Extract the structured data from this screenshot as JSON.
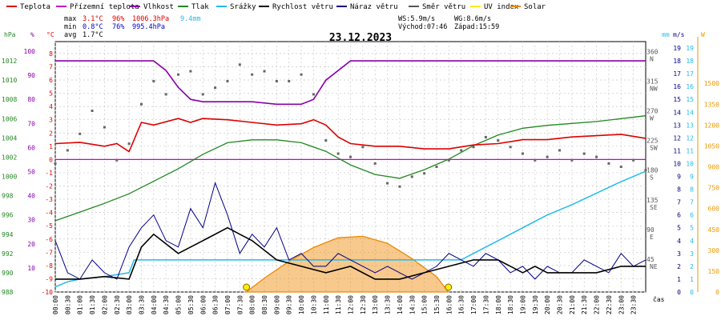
{
  "chart_data": {
    "type": "line",
    "title": "23.12.2023",
    "xlabel": "čas",
    "legend": [
      {
        "name": "Teplota",
        "color": "#dd0000"
      },
      {
        "name": "Přízemní teplota",
        "color": "#cc00cc"
      },
      {
        "name": "Vlhkost",
        "color": "#8800aa"
      },
      {
        "name": "Tlak",
        "color": "#228822"
      },
      {
        "name": "Srážky",
        "color": "#22bbee"
      },
      {
        "name": "Rychlost větru",
        "color": "#000000"
      },
      {
        "name": "Náraz větru",
        "color": "#000088"
      },
      {
        "name": "Směr větru",
        "color": "#555555"
      },
      {
        "name": "UV index",
        "color": "#ffee00"
      },
      {
        "name": "Solar",
        "color": "#ee8800"
      }
    ],
    "stats": {
      "max": {
        "label": "max",
        "temp": "3.1°C",
        "hum": "96%",
        "press": "1006.3hPa",
        "rain": "9.4mm"
      },
      "min": {
        "label": "min",
        "temp": "0.8°C",
        "hum": "76%",
        "press": "995.4hPa"
      },
      "avg": {
        "label": "avg",
        "temp": "1.7°C"
      }
    },
    "wind_info": {
      "ws": "WS:5.9m/s",
      "wg": "WG:8.6m/s",
      "sunrise": "Východ:07:46",
      "sunset": "Západ:15:59"
    },
    "axes": {
      "hpa": {
        "label": "hPa",
        "ticks": [
          "988",
          "990",
          "992",
          "994",
          "996",
          "998",
          "1000",
          "1002",
          "1004",
          "1006",
          "1008",
          "1010",
          "1012"
        ],
        "range": [
          988,
          1014
        ]
      },
      "pct": {
        "label": "%",
        "ticks": [
          "10",
          "20",
          "30",
          "40",
          "50",
          "60",
          "70",
          "80",
          "90",
          "100"
        ],
        "range": [
          0,
          104
        ]
      },
      "degc": {
        "label": "°C",
        "ticks": [
          "-10",
          "-9",
          "-8",
          "-7",
          "-6",
          "-5",
          "-4",
          "-3",
          "-2",
          "-1",
          "0",
          "1",
          "2",
          "3",
          "4",
          "5",
          "6",
          "7",
          "8"
        ],
        "range": [
          -10,
          8.9
        ]
      },
      "mm": {
        "label": "mm",
        "ticks": [
          "0",
          "1",
          "2",
          "3",
          "4",
          "5",
          "6",
          "7",
          "8",
          "9",
          "10",
          "11",
          "12",
          "13",
          "14",
          "15",
          "16",
          "17",
          "18",
          "19"
        ],
        "range": [
          0,
          19.5
        ]
      },
      "ms": {
        "label": "m/s",
        "ticks": [
          "0",
          "1",
          "2",
          "3",
          "4",
          "5",
          "6",
          "7",
          "8",
          "9",
          "10",
          "11",
          "12",
          "13",
          "14",
          "15",
          "16",
          "17",
          "18",
          "19"
        ],
        "range": [
          0,
          19.5
        ]
      },
      "wdir": {
        "ticks": [
          "45",
          "NE",
          "90",
          "E",
          "135",
          "SE",
          "180",
          "S",
          "225",
          "SW",
          "270",
          "W",
          "315",
          "NW",
          "360",
          "N"
        ]
      },
      "w": {
        "label": "W",
        "ticks": [
          "0",
          "150",
          "300",
          "450",
          "600",
          "750",
          "900",
          "1050",
          "1200",
          "1350",
          "1500"
        ],
        "range": [
          0,
          1800
        ]
      },
      "x": [
        "00:00",
        "00:30",
        "01:00",
        "01:30",
        "02:00",
        "02:30",
        "03:00",
        "03:30",
        "04:00",
        "04:30",
        "05:00",
        "05:30",
        "06:00",
        "06:30",
        "07:00",
        "07:30",
        "08:00",
        "08:30",
        "09:00",
        "09:30",
        "10:00",
        "10:30",
        "11:00",
        "11:30",
        "12:00",
        "12:30",
        "13:00",
        "13:30",
        "14:00",
        "14:30",
        "15:00",
        "15:30",
        "16:00",
        "16:30",
        "17:00",
        "17:30",
        "18:00",
        "18:30",
        "19:00",
        "19:30",
        "20:00",
        "20:30",
        "21:00",
        "21:30",
        "22:00",
        "22:30",
        "23:00",
        "23:30"
      ]
    },
    "series": {
      "temperature": {
        "name": "Teplota",
        "unit": "°C",
        "x_hours": [
          0,
          1,
          2,
          2.5,
          3,
          3.5,
          4,
          5,
          5.5,
          6,
          7,
          8,
          9,
          10,
          10.5,
          11,
          11.5,
          12,
          13,
          14,
          15,
          16,
          17,
          18,
          19,
          20,
          21,
          22,
          23,
          24
        ],
        "values": [
          1.2,
          1.3,
          1.0,
          1.2,
          0.6,
          2.8,
          2.6,
          3.1,
          2.8,
          3.1,
          3.0,
          2.8,
          2.6,
          2.7,
          3.0,
          2.6,
          1.7,
          1.2,
          1.0,
          1.0,
          0.8,
          0.8,
          1.1,
          1.2,
          1.5,
          1.5,
          1.7,
          1.8,
          1.9,
          1.6
        ]
      },
      "ground_temp": {
        "name": "Přízemní teplota",
        "unit": "°C",
        "x_hours": [
          0,
          24
        ],
        "values": [
          0.0,
          0.0
        ]
      },
      "humidity": {
        "name": "Vlhkost",
        "unit": "%",
        "x_hours": [
          0,
          3.5,
          4,
          4.5,
          5,
          5.5,
          6,
          7,
          8,
          9,
          10,
          10.5,
          11,
          12,
          24
        ],
        "values": [
          96,
          96,
          96,
          92,
          85,
          80,
          79,
          79,
          79,
          78,
          78,
          80,
          88,
          96,
          96
        ]
      },
      "pressure": {
        "name": "Tlak",
        "unit": "hPa",
        "x_hours": [
          0,
          1,
          2,
          3,
          4,
          5,
          6,
          7,
          8,
          9,
          10,
          11,
          12,
          13,
          14,
          15,
          16,
          17,
          18,
          19,
          20,
          21,
          22,
          23,
          24
        ],
        "values": [
          995.4,
          996.3,
          997.2,
          998.2,
          999.5,
          1000.8,
          1002.3,
          1003.5,
          1003.8,
          1003.8,
          1003.5,
          1002.6,
          1001.2,
          1000.2,
          999.8,
          1000.7,
          1001.8,
          1003.2,
          1004.3,
          1005.0,
          1005.3,
          1005.5,
          1005.7,
          1006.0,
          1006.3
        ]
      },
      "precip": {
        "name": "Srážky",
        "unit": "mm",
        "x_hours": [
          0,
          0.5,
          1,
          2,
          3,
          3.2,
          16.5,
          17,
          18,
          19,
          20,
          21,
          22,
          23,
          24
        ],
        "values": [
          0.4,
          0.8,
          1.0,
          1.2,
          1.5,
          2.5,
          2.5,
          3.0,
          4.0,
          5.0,
          6.0,
          6.8,
          7.7,
          8.6,
          9.4
        ]
      },
      "wind_speed": {
        "name": "Rychlost větru",
        "unit": "m/s",
        "x_hours": [
          0,
          1,
          2,
          3,
          3.5,
          4,
          5,
          6,
          7,
          7.5,
          8,
          9,
          10,
          11,
          12,
          13,
          14,
          15,
          16,
          17,
          18,
          19,
          19.5,
          20,
          21,
          22,
          23,
          24
        ],
        "values": [
          1.0,
          1.0,
          1.2,
          1.0,
          3.5,
          4.5,
          3.0,
          4.0,
          5.0,
          4.5,
          4.0,
          2.5,
          2.0,
          1.5,
          2.0,
          1.0,
          1.0,
          1.5,
          2.0,
          2.5,
          2.5,
          1.5,
          2.0,
          1.5,
          1.5,
          1.5,
          2.0,
          2.0
        ]
      },
      "wind_gust": {
        "name": "Náraz větru",
        "unit": "m/s",
        "x_hours": [
          0,
          0.5,
          1,
          1.5,
          2,
          2.5,
          3,
          3.5,
          4,
          4.5,
          5,
          5.5,
          6,
          6.5,
          7,
          7.5,
          8,
          8.5,
          9,
          9.5,
          10,
          10.5,
          11,
          11.5,
          12,
          12.5,
          13,
          13.5,
          14,
          14.5,
          15,
          15.5,
          16,
          16.5,
          17,
          17.5,
          18,
          18.5,
          19,
          19.5,
          20,
          20.5,
          21,
          21.5,
          22,
          22.5,
          23,
          23.5,
          24
        ],
        "values": [
          4.0,
          1.5,
          1.0,
          2.5,
          1.5,
          1.0,
          3.5,
          5.0,
          6.0,
          4.0,
          3.5,
          6.5,
          5.0,
          8.5,
          6.0,
          3.0,
          4.5,
          3.5,
          5.0,
          2.5,
          3.0,
          2.0,
          2.0,
          3.0,
          2.5,
          2.0,
          1.5,
          2.0,
          1.5,
          1.0,
          1.5,
          2.0,
          3.0,
          2.5,
          2.0,
          3.0,
          2.5,
          1.5,
          2.0,
          1.0,
          2.0,
          1.5,
          1.5,
          2.5,
          2.0,
          1.5,
          3.0,
          2.0,
          2.5
        ]
      },
      "wind_dir": {
        "name": "Směr větru",
        "unit": "°",
        "x_hours": [
          0,
          0.5,
          1,
          1.5,
          2,
          2.5,
          3,
          3.5,
          4,
          4.5,
          5,
          5.5,
          6,
          6.5,
          7,
          7.5,
          8,
          8.5,
          9,
          9.5,
          10,
          10.5,
          11,
          11.5,
          12,
          12.5,
          13,
          13.5,
          14,
          14.5,
          15,
          15.5,
          16,
          16.5,
          17,
          17.5,
          18,
          18.5,
          19,
          19.5,
          20,
          20.5,
          21,
          21.5,
          22,
          22.5,
          23,
          23.5,
          24
        ],
        "values": [
          195,
          215,
          240,
          275,
          250,
          200,
          225,
          285,
          320,
          300,
          330,
          335,
          300,
          310,
          320,
          345,
          330,
          335,
          320,
          320,
          330,
          300,
          230,
          210,
          205,
          220,
          195,
          165,
          160,
          175,
          180,
          190,
          200,
          215,
          220,
          235,
          230,
          220,
          210,
          200,
          205,
          215,
          200,
          210,
          205,
          195,
          190,
          200,
          185
        ]
      },
      "solar": {
        "name": "Solar",
        "unit": "W",
        "x_hours": [
          7.77,
          8.5,
          9.5,
          10.5,
          11.5,
          12.5,
          13.5,
          14.5,
          15.5,
          15.98
        ],
        "values": [
          0,
          100,
          220,
          320,
          390,
          400,
          350,
          240,
          110,
          0
        ]
      },
      "uv": {
        "name": "UV index",
        "x_hours": [
          7.77,
          15.98
        ],
        "values": [
          0,
          0
        ]
      }
    }
  }
}
